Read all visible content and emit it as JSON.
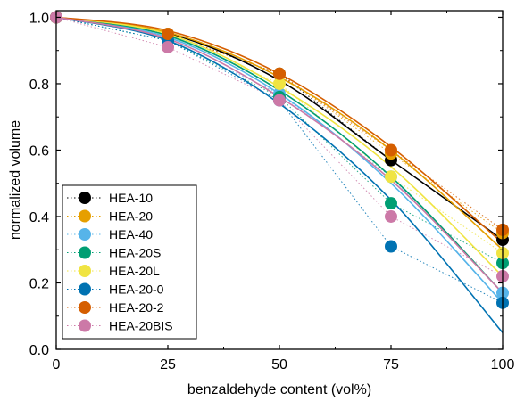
{
  "chart_data": {
    "type": "scatter",
    "xlabel": "benzaldehyde content (vol%)",
    "ylabel": "normalized volume",
    "xlim": [
      0,
      100
    ],
    "ylim": [
      0,
      1.02
    ],
    "xticks": [
      0,
      25,
      50,
      75,
      100
    ],
    "yticks": [
      0.0,
      0.2,
      0.4,
      0.6,
      0.8,
      1.0
    ],
    "xtick_labels": [
      "0",
      "25",
      "50",
      "75",
      "100"
    ],
    "ytick_labels": [
      "0.0",
      "0.2",
      "0.4",
      "0.6",
      "0.8",
      "1.0"
    ],
    "grid": false,
    "legend_position": "bottom-left",
    "x": [
      0,
      25,
      50,
      75,
      100
    ],
    "series": [
      {
        "name": "HEA-10",
        "color": "#000000",
        "values": [
          1.0,
          0.95,
          0.83,
          0.57,
          0.33
        ],
        "fit": [
          1.0,
          0.953,
          0.81,
          0.57,
          0.33
        ]
      },
      {
        "name": "HEA-20",
        "color": "#E69F00",
        "values": [
          1.0,
          0.95,
          0.83,
          0.59,
          0.35
        ],
        "fit": [
          1.0,
          0.955,
          0.82,
          0.6,
          0.3
        ]
      },
      {
        "name": "HEA-40",
        "color": "#56B4E9",
        "values": [
          1.0,
          0.93,
          0.77,
          0.52,
          0.17
        ],
        "fit": [
          1.0,
          0.94,
          0.77,
          0.5,
          0.14
        ]
      },
      {
        "name": "HEA-20S",
        "color": "#009E73",
        "values": [
          1.0,
          0.93,
          0.76,
          0.44,
          0.26
        ],
        "fit": [
          1.0,
          0.945,
          0.78,
          0.52,
          0.17
        ]
      },
      {
        "name": "HEA-20L",
        "color": "#F0E442",
        "values": [
          1.0,
          0.95,
          0.8,
          0.52,
          0.29
        ],
        "fit": [
          1.0,
          0.95,
          0.79,
          0.55,
          0.22
        ]
      },
      {
        "name": "HEA-20-0",
        "color": "#0072B2",
        "values": [
          1.0,
          0.93,
          0.75,
          0.31,
          0.14
        ],
        "fit": [
          1.0,
          0.93,
          0.74,
          0.45,
          0.05
        ]
      },
      {
        "name": "HEA-20-2",
        "color": "#D55E00",
        "values": [
          1.0,
          0.95,
          0.83,
          0.6,
          0.36
        ],
        "fit": [
          1.0,
          0.96,
          0.83,
          0.61,
          0.32
        ]
      },
      {
        "name": "HEA-20BIS",
        "color": "#CC79A7",
        "values": [
          1.0,
          0.91,
          0.75,
          0.4,
          0.22
        ],
        "fit": [
          1.0,
          0.935,
          0.76,
          0.51,
          0.17
        ]
      }
    ]
  }
}
